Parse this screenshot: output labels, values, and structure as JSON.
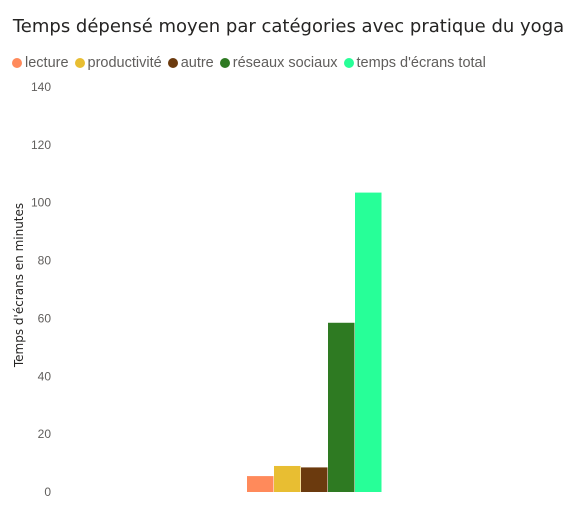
{
  "chart_data": {
    "type": "bar",
    "title": "Temps dépensé moyen par catégories avec pratique du yoga",
    "xlabel": "",
    "ylabel": "Temps d'écrans en minutes",
    "ylim": [
      0,
      140
    ],
    "yticks": [
      0,
      20,
      40,
      60,
      80,
      100,
      120,
      140
    ],
    "ytick_labels": [
      "0",
      "20",
      "40",
      "60",
      "80",
      "100",
      "120",
      "140"
    ],
    "grid": false,
    "legend_position": "top-left",
    "categories": [
      ""
    ],
    "series": [
      {
        "name": "lecture",
        "values": [
          5.5
        ],
        "color": "#FF8A5B"
      },
      {
        "name": "productivité",
        "values": [
          9
        ],
        "color": "#E8BE32"
      },
      {
        "name": "autre",
        "values": [
          8.5
        ],
        "color": "#6B3A0E"
      },
      {
        "name": "réseaux sociaux",
        "values": [
          58.5
        ],
        "color": "#2E7A22"
      },
      {
        "name": "temps d'écrans total",
        "values": [
          103.5
        ],
        "color": "#27FF98"
      }
    ]
  }
}
